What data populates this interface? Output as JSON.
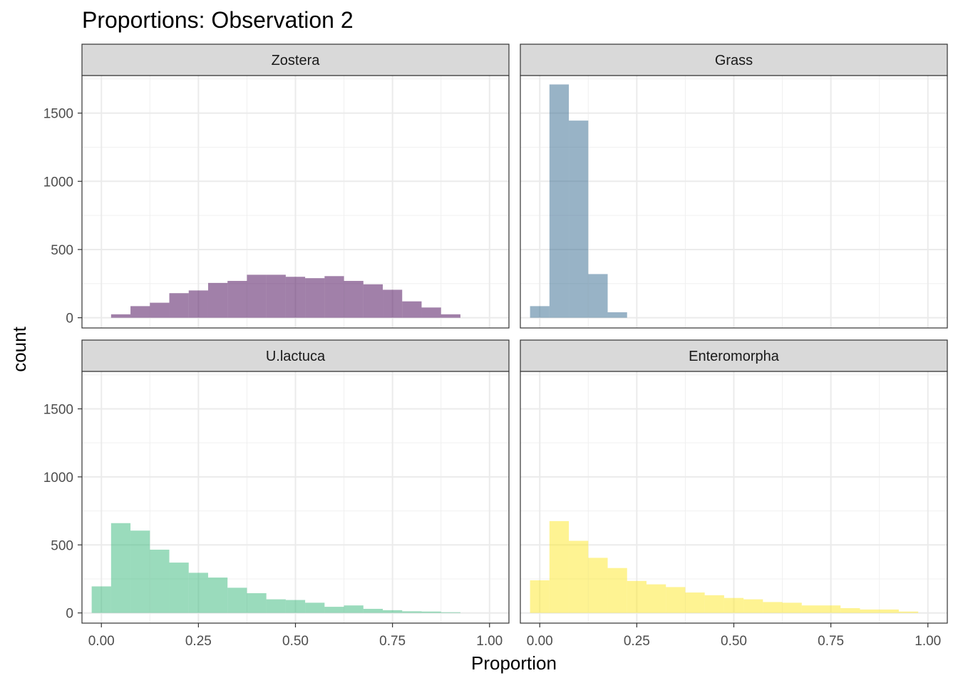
{
  "chart_data": {
    "type": "bar",
    "title": "Proportions: Observation 2",
    "xlabel": "Proportion",
    "ylabel": "count",
    "xlim": [
      -0.05,
      1.05
    ],
    "ylim": [
      -75,
      1775
    ],
    "x_ticks": [
      "0.00",
      "0.25",
      "0.50",
      "0.75",
      "1.00"
    ],
    "x_tick_values": [
      0,
      0.25,
      0.5,
      0.75,
      1.0
    ],
    "y_ticks": [
      "0",
      "500",
      "1000",
      "1500"
    ],
    "y_tick_values": [
      0,
      500,
      1000,
      1500
    ],
    "grid": true,
    "facets": [
      {
        "name": "Zostera",
        "color": "#440154",
        "bins": [
          {
            "x0": 0.025,
            "x1": 0.075,
            "count": 25
          },
          {
            "x0": 0.075,
            "x1": 0.125,
            "count": 85
          },
          {
            "x0": 0.125,
            "x1": 0.175,
            "count": 110
          },
          {
            "x0": 0.175,
            "x1": 0.225,
            "count": 180
          },
          {
            "x0": 0.225,
            "x1": 0.275,
            "count": 200
          },
          {
            "x0": 0.275,
            "x1": 0.325,
            "count": 255
          },
          {
            "x0": 0.325,
            "x1": 0.375,
            "count": 270
          },
          {
            "x0": 0.375,
            "x1": 0.425,
            "count": 315
          },
          {
            "x0": 0.425,
            "x1": 0.475,
            "count": 315
          },
          {
            "x0": 0.475,
            "x1": 0.525,
            "count": 300
          },
          {
            "x0": 0.525,
            "x1": 0.575,
            "count": 290
          },
          {
            "x0": 0.575,
            "x1": 0.625,
            "count": 305
          },
          {
            "x0": 0.625,
            "x1": 0.675,
            "count": 270
          },
          {
            "x0": 0.675,
            "x1": 0.725,
            "count": 245
          },
          {
            "x0": 0.725,
            "x1": 0.775,
            "count": 205
          },
          {
            "x0": 0.775,
            "x1": 0.825,
            "count": 120
          },
          {
            "x0": 0.825,
            "x1": 0.875,
            "count": 75
          },
          {
            "x0": 0.875,
            "x1": 0.925,
            "count": 25
          }
        ]
      },
      {
        "name": "Grass",
        "color": "#31688e",
        "bins": [
          {
            "x0": -0.025,
            "x1": 0.025,
            "count": 85
          },
          {
            "x0": 0.025,
            "x1": 0.075,
            "count": 1710
          },
          {
            "x0": 0.075,
            "x1": 0.125,
            "count": 1445
          },
          {
            "x0": 0.125,
            "x1": 0.175,
            "count": 320
          },
          {
            "x0": 0.175,
            "x1": 0.225,
            "count": 40
          }
        ]
      },
      {
        "name": "U.lactuca",
        "color": "#35b779",
        "bins": [
          {
            "x0": -0.025,
            "x1": 0.025,
            "count": 195
          },
          {
            "x0": 0.025,
            "x1": 0.075,
            "count": 660
          },
          {
            "x0": 0.075,
            "x1": 0.125,
            "count": 605
          },
          {
            "x0": 0.125,
            "x1": 0.175,
            "count": 465
          },
          {
            "x0": 0.175,
            "x1": 0.225,
            "count": 370
          },
          {
            "x0": 0.225,
            "x1": 0.275,
            "count": 295
          },
          {
            "x0": 0.275,
            "x1": 0.325,
            "count": 260
          },
          {
            "x0": 0.325,
            "x1": 0.375,
            "count": 185
          },
          {
            "x0": 0.375,
            "x1": 0.425,
            "count": 145
          },
          {
            "x0": 0.425,
            "x1": 0.475,
            "count": 100
          },
          {
            "x0": 0.475,
            "x1": 0.525,
            "count": 95
          },
          {
            "x0": 0.525,
            "x1": 0.575,
            "count": 75
          },
          {
            "x0": 0.575,
            "x1": 0.625,
            "count": 45
          },
          {
            "x0": 0.625,
            "x1": 0.675,
            "count": 55
          },
          {
            "x0": 0.675,
            "x1": 0.725,
            "count": 30
          },
          {
            "x0": 0.725,
            "x1": 0.775,
            "count": 20
          },
          {
            "x0": 0.775,
            "x1": 0.825,
            "count": 12
          },
          {
            "x0": 0.825,
            "x1": 0.875,
            "count": 10
          },
          {
            "x0": 0.875,
            "x1": 0.925,
            "count": 5
          }
        ]
      },
      {
        "name": "Enteromorpha",
        "color": "#fde725",
        "bins": [
          {
            "x0": -0.025,
            "x1": 0.025,
            "count": 240
          },
          {
            "x0": 0.025,
            "x1": 0.075,
            "count": 675
          },
          {
            "x0": 0.075,
            "x1": 0.125,
            "count": 530
          },
          {
            "x0": 0.125,
            "x1": 0.175,
            "count": 405
          },
          {
            "x0": 0.175,
            "x1": 0.225,
            "count": 330
          },
          {
            "x0": 0.225,
            "x1": 0.275,
            "count": 235
          },
          {
            "x0": 0.275,
            "x1": 0.325,
            "count": 210
          },
          {
            "x0": 0.325,
            "x1": 0.375,
            "count": 190
          },
          {
            "x0": 0.375,
            "x1": 0.425,
            "count": 150
          },
          {
            "x0": 0.425,
            "x1": 0.475,
            "count": 130
          },
          {
            "x0": 0.475,
            "x1": 0.525,
            "count": 110
          },
          {
            "x0": 0.525,
            "x1": 0.575,
            "count": 100
          },
          {
            "x0": 0.575,
            "x1": 0.625,
            "count": 80
          },
          {
            "x0": 0.625,
            "x1": 0.675,
            "count": 75
          },
          {
            "x0": 0.675,
            "x1": 0.725,
            "count": 55
          },
          {
            "x0": 0.725,
            "x1": 0.775,
            "count": 55
          },
          {
            "x0": 0.775,
            "x1": 0.825,
            "count": 35
          },
          {
            "x0": 0.825,
            "x1": 0.875,
            "count": 25
          },
          {
            "x0": 0.875,
            "x1": 0.925,
            "count": 25
          },
          {
            "x0": 0.925,
            "x1": 0.975,
            "count": 10
          }
        ]
      }
    ]
  }
}
